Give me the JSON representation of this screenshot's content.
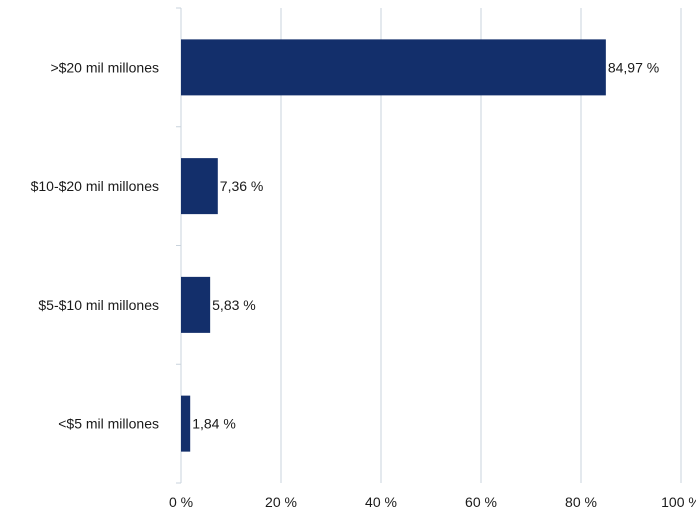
{
  "chart_data": {
    "type": "bar",
    "orientation": "horizontal",
    "categories": [
      ">$20 mil millones",
      "$10-$20 mil millones",
      "$5-$10 mil millones",
      "<$5 mil millones"
    ],
    "values": [
      84.97,
      7.36,
      5.83,
      1.84
    ],
    "value_labels": [
      "84,97 %",
      "7,36 %",
      "5,83 %",
      "1,84 %"
    ],
    "x_ticks": [
      0,
      20,
      40,
      60,
      80,
      100
    ],
    "x_tick_labels": [
      "0 %",
      "20 %",
      "40 %",
      "60 %",
      "80 %",
      "100 %"
    ],
    "xlim": [
      0,
      100
    ],
    "title": "",
    "xlabel": "",
    "ylabel": "",
    "grid": "vertical",
    "legend": "none",
    "colors": {
      "bar": "#132f6b",
      "grid": "#c9d3dc",
      "axis": "#c9d3dc",
      "text": "#1a1a1a"
    }
  }
}
